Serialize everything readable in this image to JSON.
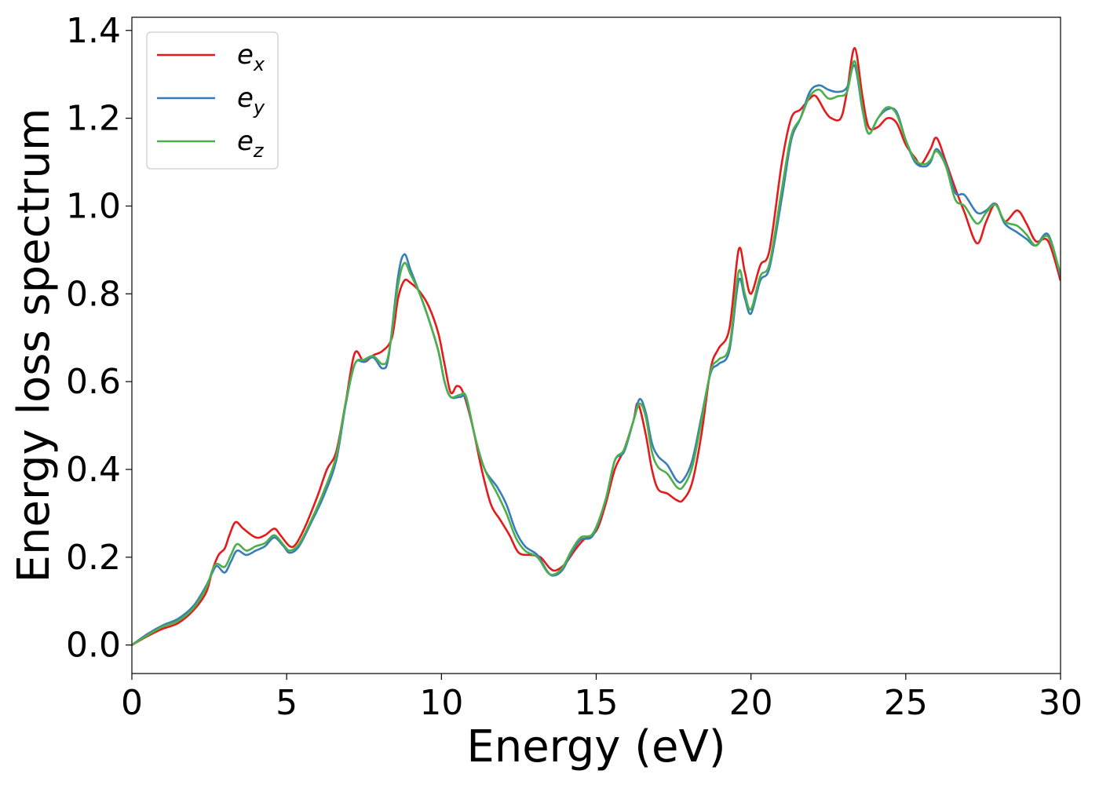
{
  "chart_data": {
    "type": "line",
    "xlabel": "Energy (eV)",
    "ylabel": "Energy loss spectrum",
    "xlim": [
      0,
      30
    ],
    "ylim": [
      -0.065,
      1.43
    ],
    "xticks": [
      0,
      5,
      10,
      15,
      20,
      25,
      30
    ],
    "yticks": [
      0.0,
      0.2,
      0.4,
      0.6,
      0.8,
      1.0,
      1.2,
      1.4
    ],
    "xtick_labels": [
      "0",
      "5",
      "10",
      "15",
      "20",
      "25",
      "30"
    ],
    "ytick_labels": [
      "0.0",
      "0.2",
      "0.4",
      "0.6",
      "0.8",
      "1.0",
      "1.2",
      "1.4"
    ],
    "grid": false,
    "legend_position": "top-left",
    "series": [
      {
        "name": "e",
        "subscript": "x",
        "color": "#e41a1c",
        "points": [
          [
            0,
            0.0
          ],
          [
            0.5,
            0.02
          ],
          [
            1.0,
            0.037
          ],
          [
            1.5,
            0.05
          ],
          [
            2.0,
            0.08
          ],
          [
            2.4,
            0.12
          ],
          [
            2.6,
            0.17
          ],
          [
            2.8,
            0.205
          ],
          [
            3.0,
            0.22
          ],
          [
            3.15,
            0.25
          ],
          [
            3.35,
            0.28
          ],
          [
            3.6,
            0.265
          ],
          [
            4.0,
            0.245
          ],
          [
            4.3,
            0.25
          ],
          [
            4.6,
            0.265
          ],
          [
            4.8,
            0.25
          ],
          [
            5.1,
            0.225
          ],
          [
            5.3,
            0.23
          ],
          [
            5.6,
            0.27
          ],
          [
            6.0,
            0.34
          ],
          [
            6.3,
            0.4
          ],
          [
            6.6,
            0.44
          ],
          [
            6.9,
            0.55
          ],
          [
            7.2,
            0.665
          ],
          [
            7.5,
            0.645
          ],
          [
            7.8,
            0.66
          ],
          [
            8.1,
            0.67
          ],
          [
            8.4,
            0.7
          ],
          [
            8.6,
            0.79
          ],
          [
            8.8,
            0.83
          ],
          [
            9.0,
            0.825
          ],
          [
            9.3,
            0.805
          ],
          [
            9.6,
            0.77
          ],
          [
            9.9,
            0.71
          ],
          [
            10.1,
            0.64
          ],
          [
            10.3,
            0.575
          ],
          [
            10.5,
            0.59
          ],
          [
            10.7,
            0.575
          ],
          [
            11.0,
            0.5
          ],
          [
            11.3,
            0.4
          ],
          [
            11.6,
            0.32
          ],
          [
            11.9,
            0.285
          ],
          [
            12.2,
            0.25
          ],
          [
            12.5,
            0.21
          ],
          [
            12.9,
            0.205
          ],
          [
            13.2,
            0.2
          ],
          [
            13.5,
            0.175
          ],
          [
            13.7,
            0.17
          ],
          [
            14.0,
            0.185
          ],
          [
            14.3,
            0.215
          ],
          [
            14.6,
            0.24
          ],
          [
            15.0,
            0.26
          ],
          [
            15.3,
            0.32
          ],
          [
            15.6,
            0.4
          ],
          [
            15.9,
            0.445
          ],
          [
            16.2,
            0.51
          ],
          [
            16.35,
            0.55
          ],
          [
            16.6,
            0.48
          ],
          [
            16.8,
            0.4
          ],
          [
            17.0,
            0.355
          ],
          [
            17.3,
            0.345
          ],
          [
            17.6,
            0.33
          ],
          [
            17.8,
            0.33
          ],
          [
            18.1,
            0.37
          ],
          [
            18.4,
            0.48
          ],
          [
            18.7,
            0.63
          ],
          [
            18.95,
            0.675
          ],
          [
            19.3,
            0.72
          ],
          [
            19.6,
            0.9
          ],
          [
            19.8,
            0.85
          ],
          [
            20.0,
            0.8
          ],
          [
            20.3,
            0.865
          ],
          [
            20.6,
            0.9
          ],
          [
            21.0,
            1.1
          ],
          [
            21.3,
            1.2
          ],
          [
            21.6,
            1.22
          ],
          [
            21.9,
            1.245
          ],
          [
            22.1,
            1.25
          ],
          [
            22.4,
            1.215
          ],
          [
            22.6,
            1.2
          ],
          [
            22.9,
            1.2
          ],
          [
            23.1,
            1.26
          ],
          [
            23.35,
            1.36
          ],
          [
            23.6,
            1.25
          ],
          [
            23.8,
            1.18
          ],
          [
            24.1,
            1.18
          ],
          [
            24.4,
            1.2
          ],
          [
            24.7,
            1.19
          ],
          [
            25.0,
            1.14
          ],
          [
            25.3,
            1.11
          ],
          [
            25.5,
            1.095
          ],
          [
            25.8,
            1.13
          ],
          [
            26.0,
            1.155
          ],
          [
            26.3,
            1.1
          ],
          [
            26.6,
            1.04
          ],
          [
            26.9,
            0.985
          ],
          [
            27.3,
            0.915
          ],
          [
            27.6,
            0.965
          ],
          [
            27.9,
            1.005
          ],
          [
            28.2,
            0.965
          ],
          [
            28.6,
            0.99
          ],
          [
            28.9,
            0.96
          ],
          [
            29.2,
            0.92
          ],
          [
            29.6,
            0.92
          ],
          [
            30.0,
            0.83
          ]
        ]
      },
      {
        "name": "e",
        "subscript": "y",
        "color": "#377eb8",
        "points": [
          [
            0,
            0.0
          ],
          [
            0.5,
            0.025
          ],
          [
            1.0,
            0.045
          ],
          [
            1.5,
            0.06
          ],
          [
            2.0,
            0.09
          ],
          [
            2.4,
            0.135
          ],
          [
            2.6,
            0.165
          ],
          [
            2.75,
            0.18
          ],
          [
            3.0,
            0.165
          ],
          [
            3.2,
            0.19
          ],
          [
            3.4,
            0.215
          ],
          [
            3.7,
            0.205
          ],
          [
            4.0,
            0.215
          ],
          [
            4.3,
            0.225
          ],
          [
            4.6,
            0.245
          ],
          [
            4.9,
            0.225
          ],
          [
            5.1,
            0.21
          ],
          [
            5.4,
            0.225
          ],
          [
            5.8,
            0.28
          ],
          [
            6.2,
            0.34
          ],
          [
            6.6,
            0.42
          ],
          [
            6.9,
            0.545
          ],
          [
            7.2,
            0.64
          ],
          [
            7.5,
            0.645
          ],
          [
            7.8,
            0.655
          ],
          [
            8.1,
            0.63
          ],
          [
            8.3,
            0.66
          ],
          [
            8.6,
            0.84
          ],
          [
            8.8,
            0.89
          ],
          [
            9.0,
            0.855
          ],
          [
            9.3,
            0.8
          ],
          [
            9.6,
            0.74
          ],
          [
            9.9,
            0.67
          ],
          [
            10.1,
            0.6
          ],
          [
            10.3,
            0.565
          ],
          [
            10.6,
            0.565
          ],
          [
            10.8,
            0.56
          ],
          [
            11.1,
            0.47
          ],
          [
            11.4,
            0.4
          ],
          [
            11.8,
            0.36
          ],
          [
            12.1,
            0.32
          ],
          [
            12.4,
            0.26
          ],
          [
            12.7,
            0.225
          ],
          [
            13.1,
            0.205
          ],
          [
            13.4,
            0.17
          ],
          [
            13.6,
            0.158
          ],
          [
            13.9,
            0.17
          ],
          [
            14.2,
            0.21
          ],
          [
            14.5,
            0.24
          ],
          [
            14.9,
            0.25
          ],
          [
            15.3,
            0.33
          ],
          [
            15.6,
            0.42
          ],
          [
            15.9,
            0.44
          ],
          [
            16.2,
            0.51
          ],
          [
            16.4,
            0.56
          ],
          [
            16.6,
            0.53
          ],
          [
            16.8,
            0.46
          ],
          [
            17.0,
            0.43
          ],
          [
            17.3,
            0.41
          ],
          [
            17.6,
            0.375
          ],
          [
            17.8,
            0.375
          ],
          [
            18.1,
            0.42
          ],
          [
            18.4,
            0.52
          ],
          [
            18.7,
            0.62
          ],
          [
            18.95,
            0.64
          ],
          [
            19.3,
            0.67
          ],
          [
            19.6,
            0.83
          ],
          [
            19.8,
            0.79
          ],
          [
            20.0,
            0.755
          ],
          [
            20.3,
            0.83
          ],
          [
            20.6,
            0.86
          ],
          [
            21.0,
            1.02
          ],
          [
            21.3,
            1.15
          ],
          [
            21.6,
            1.2
          ],
          [
            21.9,
            1.26
          ],
          [
            22.2,
            1.275
          ],
          [
            22.5,
            1.265
          ],
          [
            22.8,
            1.26
          ],
          [
            23.1,
            1.27
          ],
          [
            23.35,
            1.32
          ],
          [
            23.6,
            1.22
          ],
          [
            23.8,
            1.165
          ],
          [
            24.1,
            1.2
          ],
          [
            24.4,
            1.22
          ],
          [
            24.7,
            1.215
          ],
          [
            25.0,
            1.15
          ],
          [
            25.3,
            1.1
          ],
          [
            25.6,
            1.09
          ],
          [
            25.8,
            1.1
          ],
          [
            26.0,
            1.13
          ],
          [
            26.3,
            1.095
          ],
          [
            26.6,
            1.03
          ],
          [
            26.9,
            1.025
          ],
          [
            27.3,
            0.985
          ],
          [
            27.6,
            0.99
          ],
          [
            27.9,
            1.005
          ],
          [
            28.2,
            0.96
          ],
          [
            28.6,
            0.94
          ],
          [
            28.9,
            0.925
          ],
          [
            29.2,
            0.91
          ],
          [
            29.6,
            0.935
          ],
          [
            30.0,
            0.84
          ]
        ]
      },
      {
        "name": "e",
        "subscript": "z",
        "color": "#4daf4a",
        "points": [
          [
            0,
            0.0
          ],
          [
            0.5,
            0.022
          ],
          [
            1.0,
            0.042
          ],
          [
            1.5,
            0.055
          ],
          [
            2.0,
            0.085
          ],
          [
            2.4,
            0.13
          ],
          [
            2.6,
            0.17
          ],
          [
            2.75,
            0.185
          ],
          [
            3.0,
            0.178
          ],
          [
            3.2,
            0.205
          ],
          [
            3.4,
            0.23
          ],
          [
            3.7,
            0.215
          ],
          [
            4.0,
            0.225
          ],
          [
            4.3,
            0.232
          ],
          [
            4.6,
            0.25
          ],
          [
            4.9,
            0.228
          ],
          [
            5.1,
            0.215
          ],
          [
            5.4,
            0.23
          ],
          [
            5.8,
            0.285
          ],
          [
            6.2,
            0.35
          ],
          [
            6.6,
            0.43
          ],
          [
            6.9,
            0.55
          ],
          [
            7.2,
            0.64
          ],
          [
            7.5,
            0.65
          ],
          [
            7.8,
            0.658
          ],
          [
            8.1,
            0.64
          ],
          [
            8.3,
            0.665
          ],
          [
            8.6,
            0.82
          ],
          [
            8.8,
            0.87
          ],
          [
            9.0,
            0.845
          ],
          [
            9.3,
            0.8
          ],
          [
            9.6,
            0.74
          ],
          [
            9.9,
            0.67
          ],
          [
            10.1,
            0.6
          ],
          [
            10.3,
            0.565
          ],
          [
            10.6,
            0.57
          ],
          [
            10.8,
            0.565
          ],
          [
            11.1,
            0.47
          ],
          [
            11.4,
            0.4
          ],
          [
            11.8,
            0.345
          ],
          [
            12.1,
            0.3
          ],
          [
            12.4,
            0.245
          ],
          [
            12.7,
            0.215
          ],
          [
            13.1,
            0.2
          ],
          [
            13.4,
            0.168
          ],
          [
            13.6,
            0.16
          ],
          [
            13.9,
            0.175
          ],
          [
            14.2,
            0.215
          ],
          [
            14.5,
            0.245
          ],
          [
            14.9,
            0.255
          ],
          [
            15.3,
            0.33
          ],
          [
            15.6,
            0.42
          ],
          [
            15.9,
            0.445
          ],
          [
            16.2,
            0.51
          ],
          [
            16.4,
            0.55
          ],
          [
            16.6,
            0.52
          ],
          [
            16.8,
            0.44
          ],
          [
            17.0,
            0.405
          ],
          [
            17.3,
            0.39
          ],
          [
            17.6,
            0.36
          ],
          [
            17.8,
            0.36
          ],
          [
            18.1,
            0.405
          ],
          [
            18.4,
            0.51
          ],
          [
            18.7,
            0.625
          ],
          [
            18.95,
            0.65
          ],
          [
            19.3,
            0.68
          ],
          [
            19.6,
            0.85
          ],
          [
            19.8,
            0.8
          ],
          [
            20.0,
            0.765
          ],
          [
            20.3,
            0.84
          ],
          [
            20.6,
            0.87
          ],
          [
            21.0,
            1.04
          ],
          [
            21.3,
            1.16
          ],
          [
            21.6,
            1.2
          ],
          [
            21.9,
            1.25
          ],
          [
            22.2,
            1.265
          ],
          [
            22.5,
            1.245
          ],
          [
            22.8,
            1.25
          ],
          [
            23.1,
            1.26
          ],
          [
            23.35,
            1.33
          ],
          [
            23.6,
            1.225
          ],
          [
            23.8,
            1.165
          ],
          [
            24.1,
            1.2
          ],
          [
            24.4,
            1.225
          ],
          [
            24.7,
            1.21
          ],
          [
            25.0,
            1.15
          ],
          [
            25.3,
            1.105
          ],
          [
            25.6,
            1.095
          ],
          [
            25.8,
            1.105
          ],
          [
            26.0,
            1.125
          ],
          [
            26.3,
            1.09
          ],
          [
            26.6,
            1.015
          ],
          [
            26.9,
            1.0
          ],
          [
            27.3,
            0.96
          ],
          [
            27.6,
            0.985
          ],
          [
            27.9,
            1.003
          ],
          [
            28.2,
            0.965
          ],
          [
            28.6,
            0.955
          ],
          [
            28.9,
            0.935
          ],
          [
            29.2,
            0.91
          ],
          [
            29.6,
            0.93
          ],
          [
            30.0,
            0.845
          ]
        ]
      }
    ]
  }
}
